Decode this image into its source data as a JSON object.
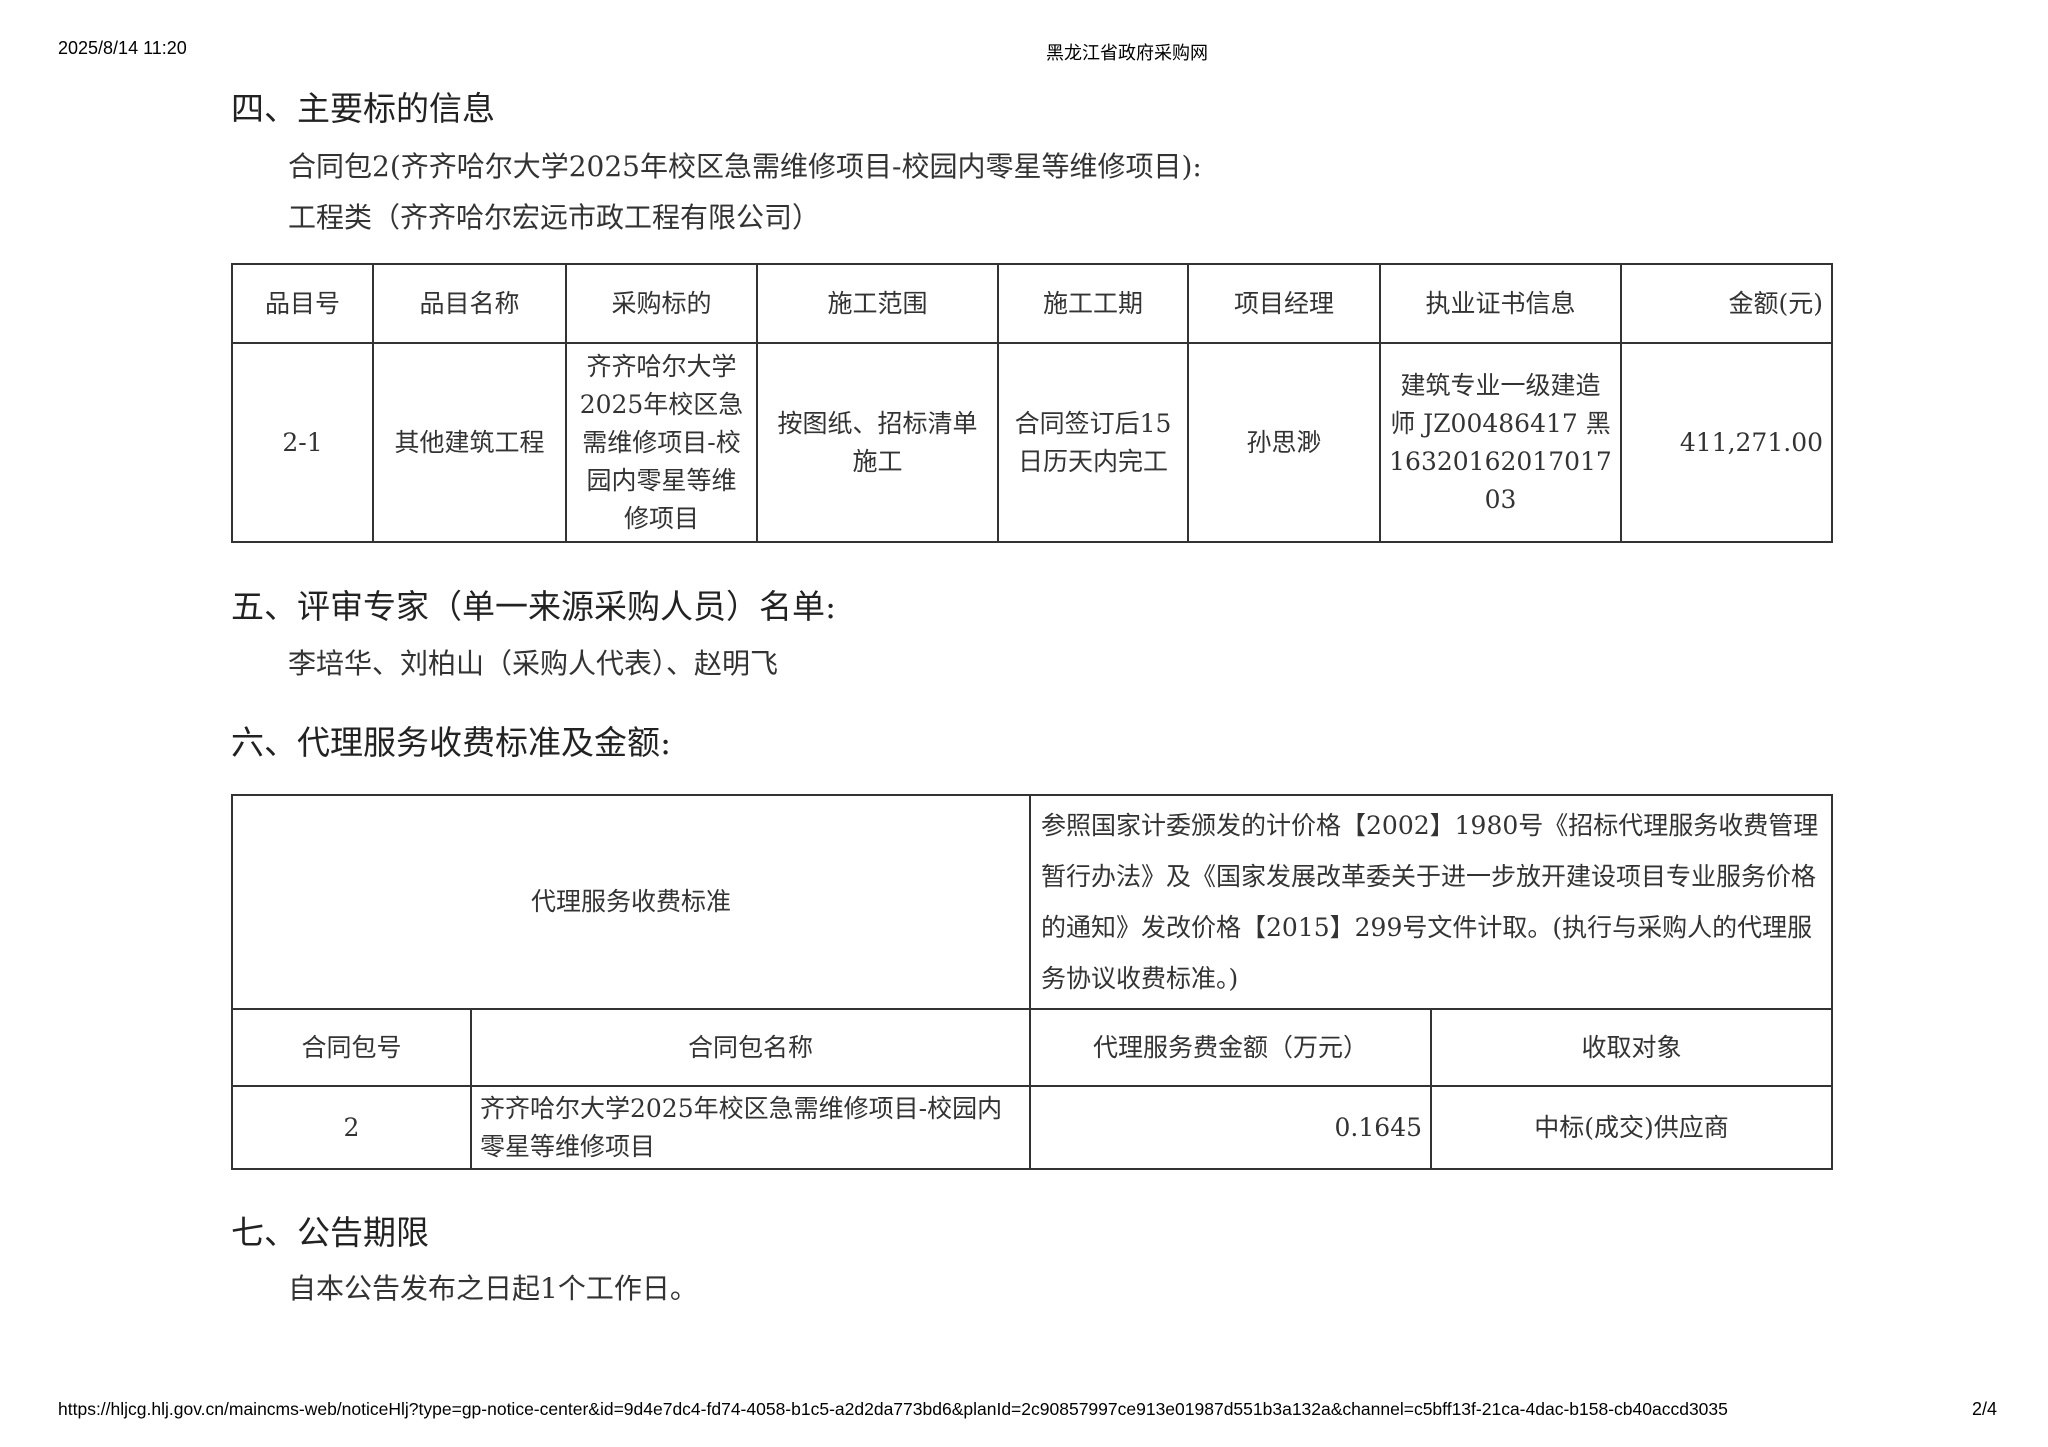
{
  "header": {
    "datetime": "2025/8/14 11:20",
    "site_title": "黑龙江省政府采购网"
  },
  "section4": {
    "title": "四、主要标的信息",
    "package_line": "合同包2(齐齐哈尔大学2025年校区急需维修项目-校园内零星等维修项目):",
    "category_line": "工程类（齐齐哈尔宏远市政工程有限公司）",
    "table": {
      "headers": [
        "品目号",
        "品目名称",
        "采购标的",
        "施工范围",
        "施工工期",
        "项目经理",
        "执业证书信息",
        "金额(元)"
      ],
      "rows": [
        [
          "2-1",
          "其他建筑工程",
          "齐齐哈尔大学2025年校区急需维修项目-校园内零星等维修项目",
          "按图纸、招标清单施工",
          "合同签订后15日历天内完工",
          "孙思渺",
          "建筑专业一级建造师 JZ00486417 黑1632016201701703",
          "411,271.00"
        ]
      ]
    }
  },
  "section5": {
    "title": "五、评审专家（单一来源采购人员）名单:",
    "names": "李培华、刘柏山（采购人代表）、赵明飞"
  },
  "section6": {
    "title": "六、代理服务收费标准及金额:",
    "standard_label": "代理服务收费标准",
    "standard_text": "参照国家计委颁发的计价格【2002】1980号《招标代理服务收费管理暂行办法》及《国家发展改革委关于进一步放开建设项目专业服务价格的通知》发改价格【2015】299号文件计取。(执行与采购人的代理服务协议收费标准。)",
    "headers": [
      "合同包号",
      "合同包名称",
      "代理服务费金额（万元）",
      "收取对象"
    ],
    "rows": [
      [
        "2",
        "齐齐哈尔大学2025年校区急需维修项目-校园内零星等维修项目",
        "0.1645",
        "中标(成交)供应商"
      ]
    ]
  },
  "section7": {
    "title": "七、公告期限",
    "text": "自本公告发布之日起1个工作日。"
  },
  "footer": {
    "url": "https://hljcg.hlj.gov.cn/maincms-web/noticeHlj?type=gp-notice-center&id=9d4e7dc4-fd74-4058-b1c5-a2d2da773bd6&planId=2c90857997ce913e01987d551b3a132a&channel=c5bff13f-21ca-4dac-b158-cb40accd3035",
    "page": "2/4"
  }
}
